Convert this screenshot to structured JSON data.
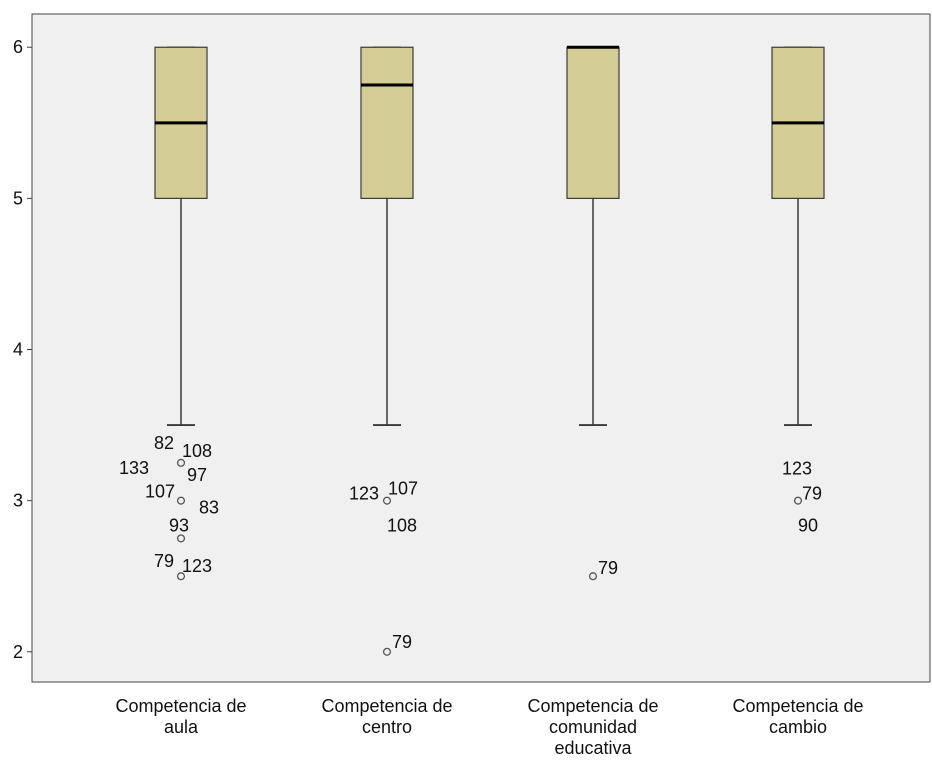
{
  "chart_data": {
    "type": "boxplot",
    "title": "",
    "xlabel": "",
    "ylabel": "",
    "ylim": [
      1.8,
      6.22
    ],
    "yticks": [
      2,
      3,
      4,
      5,
      6
    ],
    "grid": false,
    "colors": {
      "plot_background": "#f0f0f0",
      "box_fill": "#d4cd96",
      "box_stroke": "#3a3a3a",
      "median": "#000000",
      "outlier_stroke": "#555555",
      "text": "#111111"
    },
    "categories": [
      [
        "Competencia de",
        "aula"
      ],
      [
        "Competencia de",
        "centro"
      ],
      [
        "Competencia de",
        "comunidad",
        "educativa"
      ],
      [
        "Competencia de",
        "cambio"
      ]
    ],
    "boxes": [
      {
        "whisker_low": 3.5,
        "q1": 5,
        "median": 5.5,
        "q3": 6,
        "whisker_high": 6,
        "outliers": [
          {
            "value": 3.25,
            "labels": [
              "82",
              "108",
              "133",
              "97"
            ]
          },
          {
            "value": 3.0,
            "labels": [
              "107",
              "83",
              "93"
            ]
          },
          {
            "value": 2.75,
            "labels": []
          },
          {
            "value": 2.5,
            "labels": [
              "79",
              "123"
            ]
          }
        ]
      },
      {
        "whisker_low": 3.5,
        "q1": 5,
        "median": 5.75,
        "q3": 6,
        "whisker_high": 6,
        "outliers": [
          {
            "value": 3.0,
            "labels": [
              "123",
              "107",
              "108"
            ]
          },
          {
            "value": 2.0,
            "labels": [
              "79"
            ]
          }
        ]
      },
      {
        "whisker_low": 3.5,
        "q1": 5,
        "median": 6,
        "q3": 6,
        "whisker_high": 6,
        "outliers": [
          {
            "value": 2.5,
            "labels": [
              "79"
            ]
          }
        ]
      },
      {
        "whisker_low": 3.5,
        "q1": 5,
        "median": 5.5,
        "q3": 6,
        "whisker_high": 6,
        "outliers": [
          {
            "value": 3.0,
            "labels": [
              "123",
              "79",
              "90"
            ]
          }
        ]
      }
    ]
  }
}
